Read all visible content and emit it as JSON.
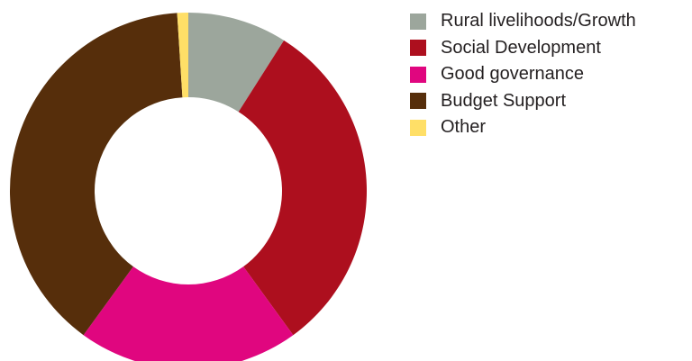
{
  "chart_data": {
    "type": "pie",
    "hole": true,
    "legend_position": "right",
    "categories": [
      "Rural livelihoods/Growth",
      "Social Development",
      "Good governance",
      "Budget Support",
      "Other"
    ],
    "values": [
      9,
      31,
      20,
      39,
      1
    ],
    "colors": [
      "#9ca69c",
      "#ad0f1e",
      "#e0067f",
      "#562e0b",
      "#ffdf67"
    ]
  }
}
